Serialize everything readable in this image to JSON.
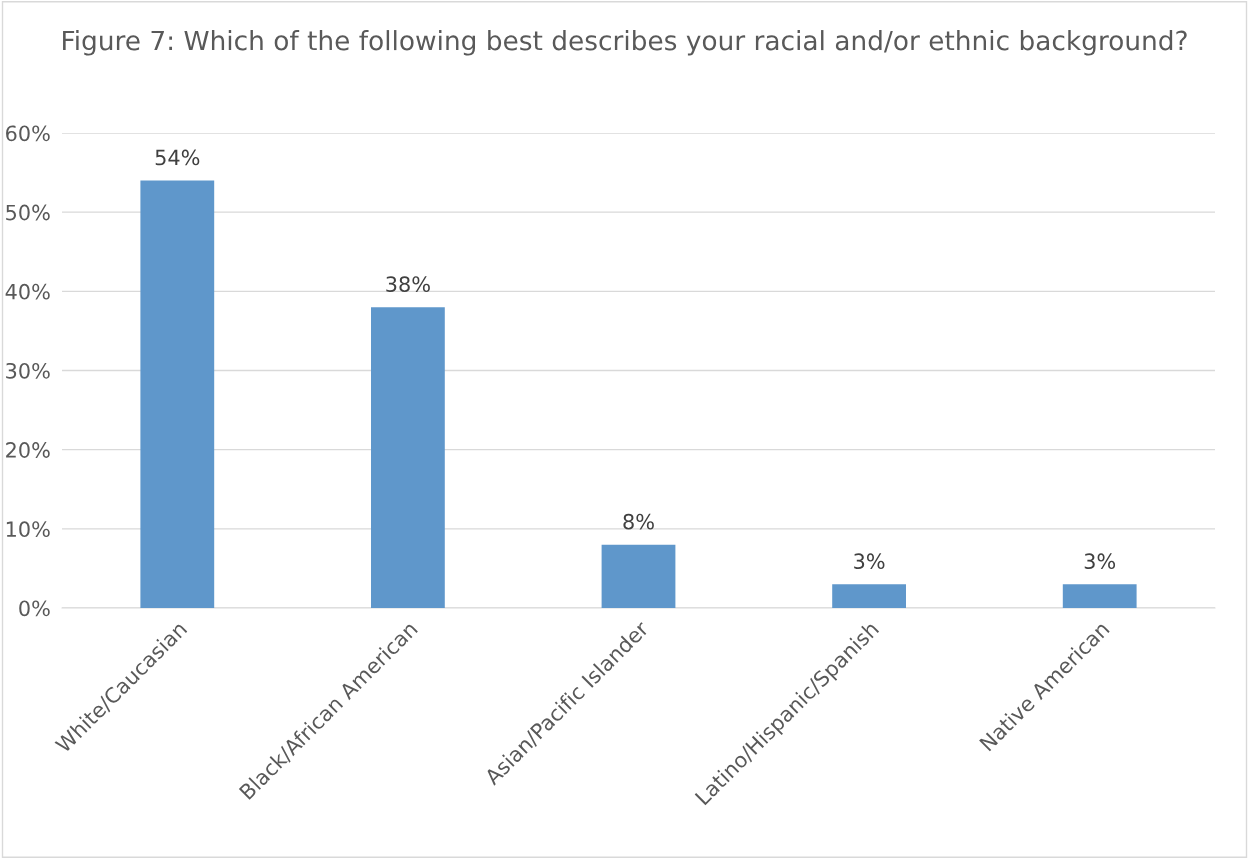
{
  "chart_data": {
    "type": "bar",
    "title": "Figure 7: Which of the following best describes your racial and/or ethnic background?",
    "categories": [
      "White/Caucasian",
      "Black/African American",
      "Asian/Pacific Islander",
      "Latino/Hispanic/Spanish",
      "Native American"
    ],
    "values": [
      54,
      38,
      8,
      3,
      3
    ],
    "value_labels": [
      "54%",
      "38%",
      "8%",
      "3%",
      "3%"
    ],
    "color": "#5f97cb",
    "ylim": [
      0,
      60
    ],
    "yticks": [
      {
        "value": 0,
        "label": "0%"
      },
      {
        "value": 10,
        "label": "10%"
      },
      {
        "value": 20,
        "label": "20%"
      },
      {
        "value": 30,
        "label": "30%"
      },
      {
        "value": 40,
        "label": "40%"
      },
      {
        "value": 50,
        "label": "50%"
      },
      {
        "value": 60,
        "label": "60%"
      }
    ],
    "grid": "y",
    "legend": false
  }
}
